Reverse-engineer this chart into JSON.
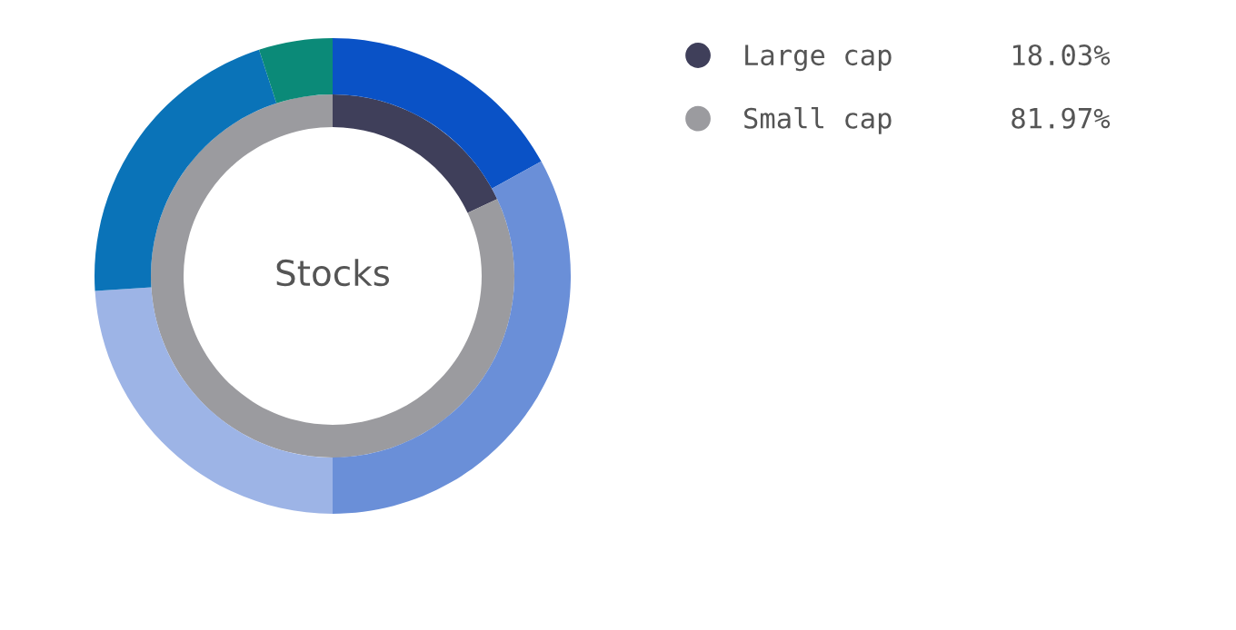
{
  "chart_data": {
    "type": "donut",
    "title": "Stocks",
    "legend": "right",
    "categories": [
      "Large cap",
      "Small cap",
      null,
      null,
      null,
      null,
      null
    ],
    "colors": [
      "#3f3f5a",
      "#9b9b9f",
      "#0a52c6",
      "#6a8fd8",
      "#9db4e6",
      "#0a73b8",
      "#0b8a78"
    ],
    "series": [
      {
        "values": [
          18.03,
          81.97,
          null,
          null,
          null,
          null,
          null
        ],
        "value_labels": [
          "18.03%",
          "81.97%",
          null,
          null,
          null,
          null,
          null
        ]
      },
      {
        "values": [
          null,
          null,
          17,
          33,
          24,
          21,
          5
        ]
      }
    ]
  }
}
